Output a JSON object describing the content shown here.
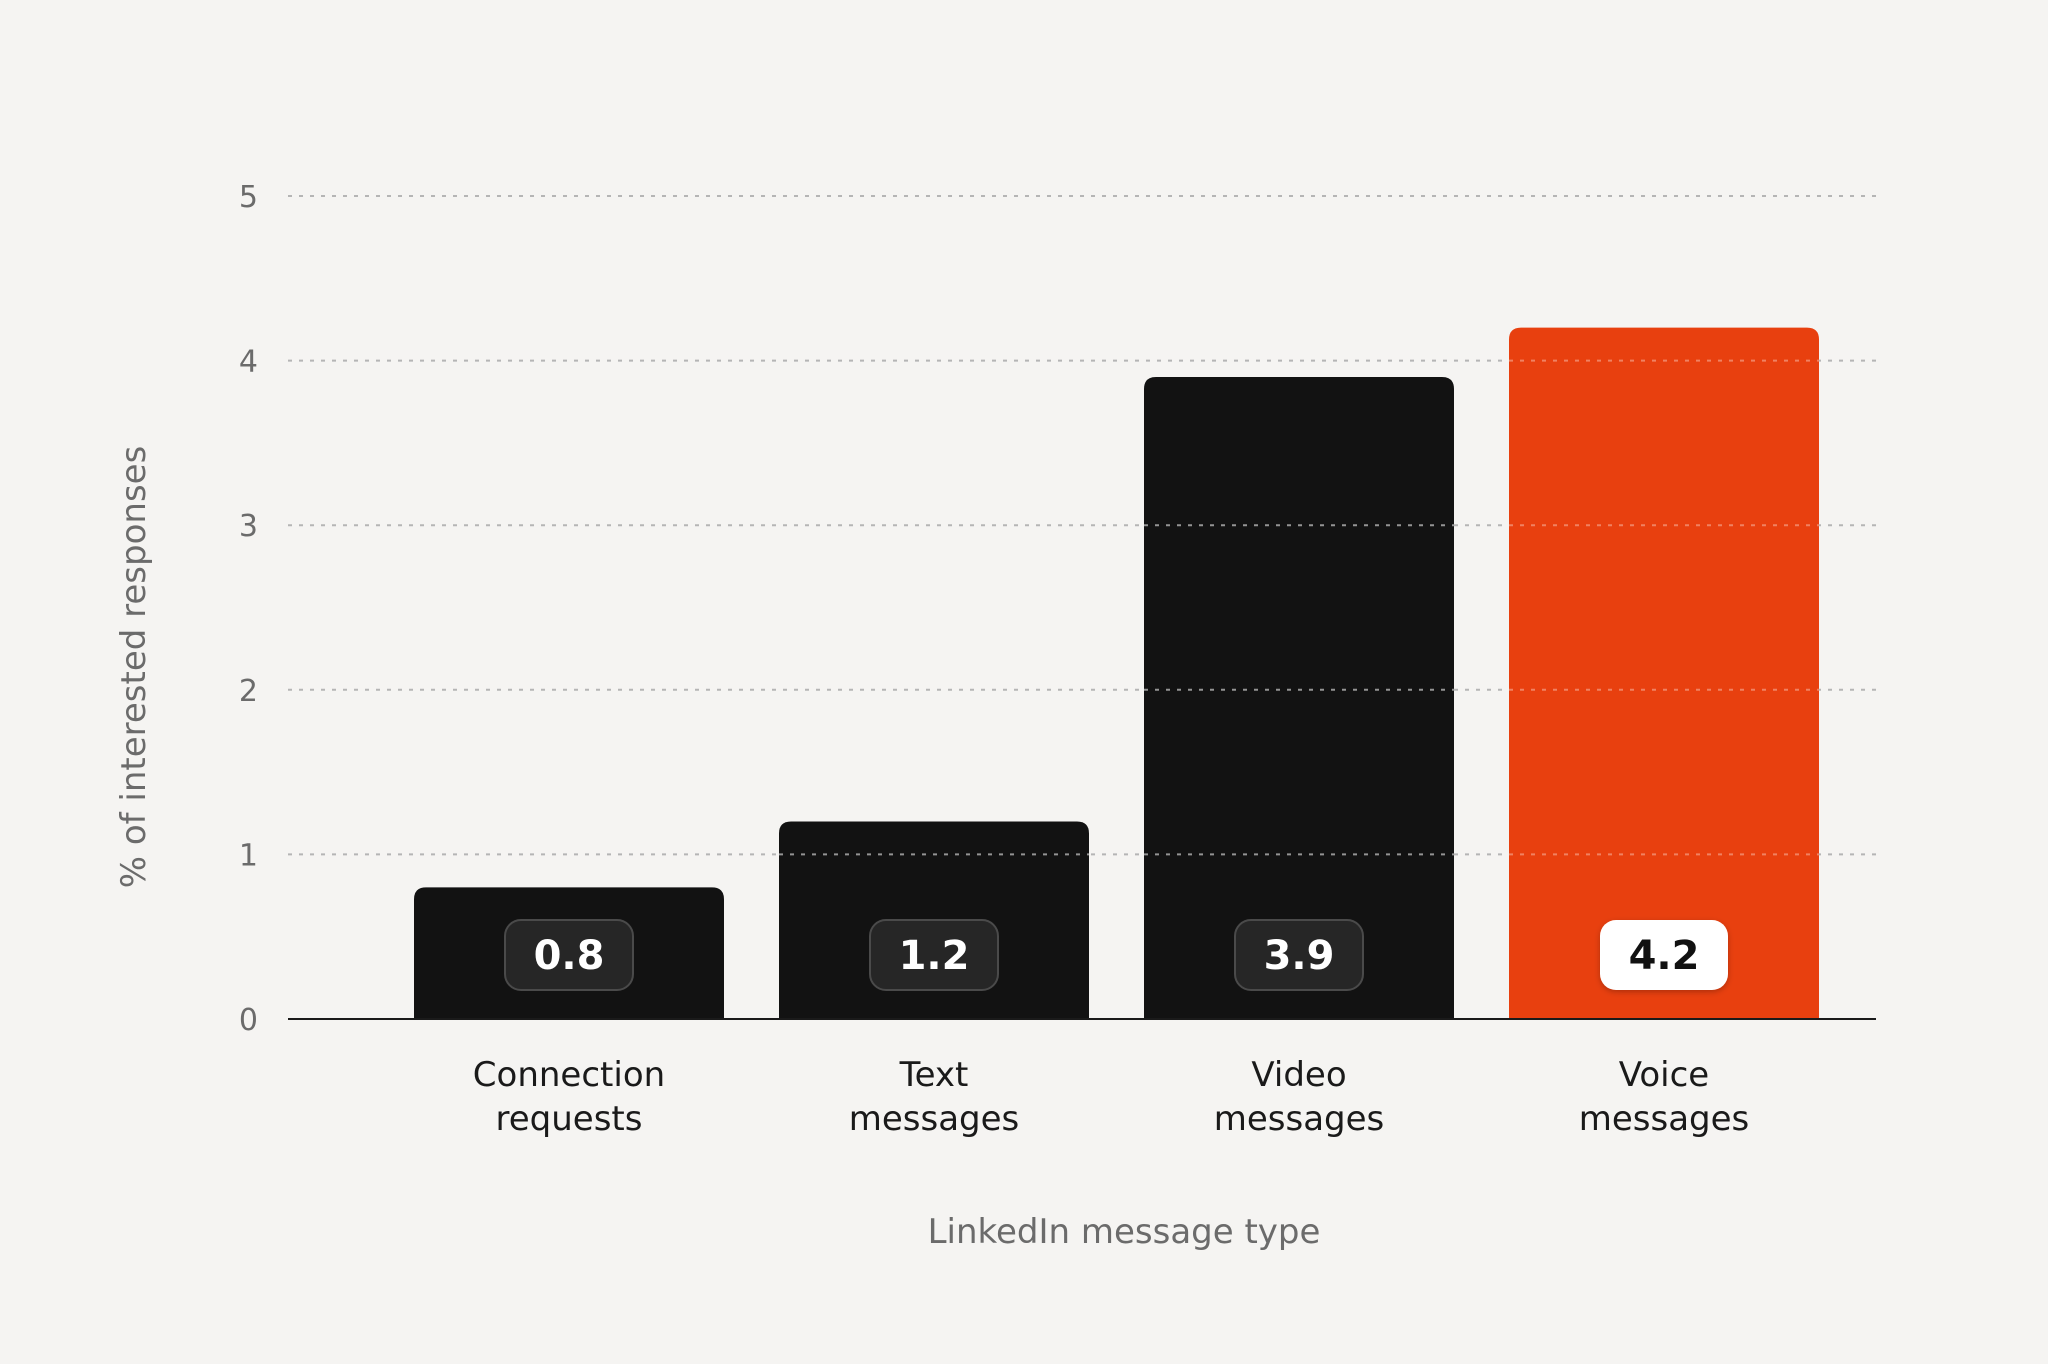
{
  "chart_data": {
    "type": "bar",
    "title": "",
    "xlabel": "LinkedIn message type",
    "ylabel": "% of interested responses",
    "ylim": [
      0,
      5
    ],
    "yticks": [
      0,
      1,
      2,
      3,
      4,
      5
    ],
    "grid": true,
    "categories": [
      [
        "Connection",
        "requests"
      ],
      [
        "Text",
        "messages"
      ],
      [
        "Video",
        "messages"
      ],
      [
        "Voice",
        "messages"
      ]
    ],
    "values": [
      0.8,
      1.2,
      3.9,
      4.2
    ],
    "data_labels": [
      "0.8",
      "1.2",
      "3.9",
      "4.2"
    ],
    "highlight_index": 3
  },
  "colors": {
    "background": "#f5f4f2",
    "bar": "#121212",
    "highlight": "#e8400f",
    "grid": "#b5b5b5",
    "axis": "#1a1a1a",
    "label_badge_dark": "#262626",
    "label_badge_light": "#ffffff"
  }
}
